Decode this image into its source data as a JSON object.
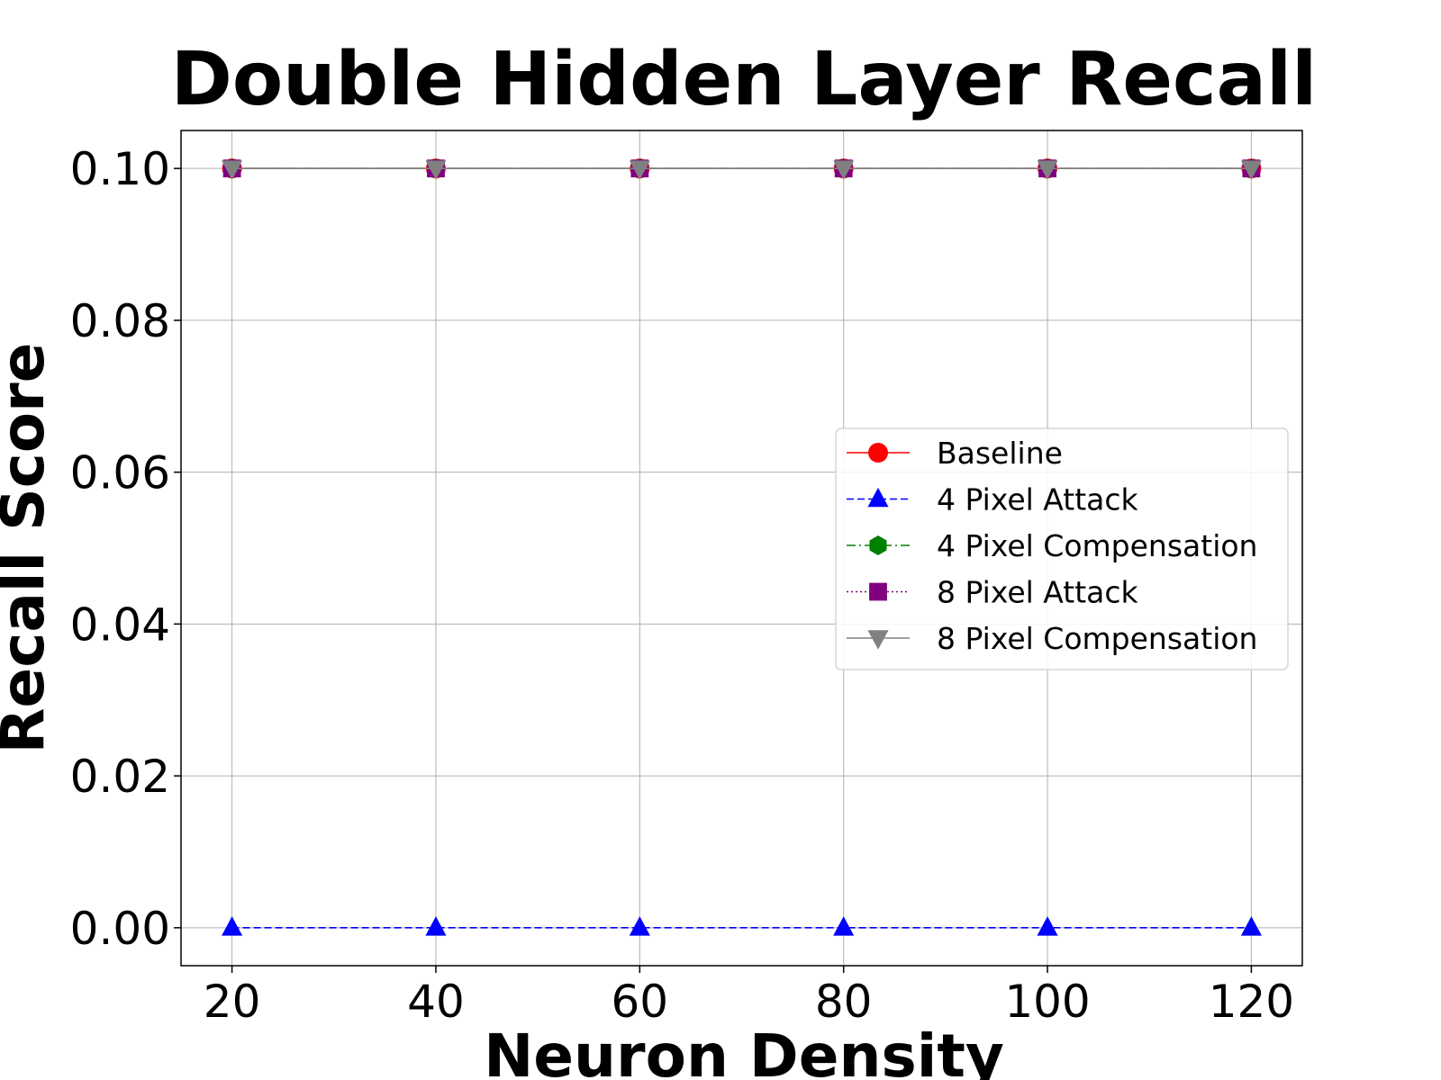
{
  "chart_data": {
    "type": "line",
    "title": "Double Hidden Layer Recall",
    "xlabel": "Neuron Density",
    "ylabel": "Recall Score",
    "x": [
      20,
      40,
      60,
      80,
      100,
      120
    ],
    "xlim": [
      15,
      125
    ],
    "ylim": [
      -0.005,
      0.105
    ],
    "x_ticks": [
      "20",
      "40",
      "60",
      "80",
      "100",
      "120"
    ],
    "y_ticks": [
      "0.00",
      "0.02",
      "0.04",
      "0.06",
      "0.08",
      "0.10"
    ],
    "y_tick_values": [
      0.0,
      0.02,
      0.04,
      0.06,
      0.08,
      0.1
    ],
    "grid": true,
    "legend_position": "center-right",
    "series": [
      {
        "name": "Baseline",
        "values": [
          0.1,
          0.1,
          0.1,
          0.1,
          0.1,
          0.1
        ],
        "color": "#ff0000",
        "marker": "circle",
        "linestyle": "solid"
      },
      {
        "name": "4 Pixel Attack",
        "values": [
          0.0,
          0.0,
          0.0,
          0.0,
          0.0,
          0.0
        ],
        "color": "#0000ff",
        "marker": "triangle-up",
        "linestyle": "dashed"
      },
      {
        "name": "4 Pixel Compensation",
        "values": [
          0.1,
          0.1,
          0.1,
          0.1,
          0.1,
          0.1
        ],
        "color": "#008000",
        "marker": "hexagon",
        "linestyle": "dashdot"
      },
      {
        "name": "8 Pixel Attack",
        "values": [
          0.1,
          0.1,
          0.1,
          0.1,
          0.1,
          0.1
        ],
        "color": "#800080",
        "marker": "square",
        "linestyle": "dotted"
      },
      {
        "name": "8 Pixel Compensation",
        "values": [
          0.1,
          0.1,
          0.1,
          0.1,
          0.1,
          0.1
        ],
        "color": "#808080",
        "marker": "triangle-down",
        "linestyle": "solid"
      }
    ]
  }
}
